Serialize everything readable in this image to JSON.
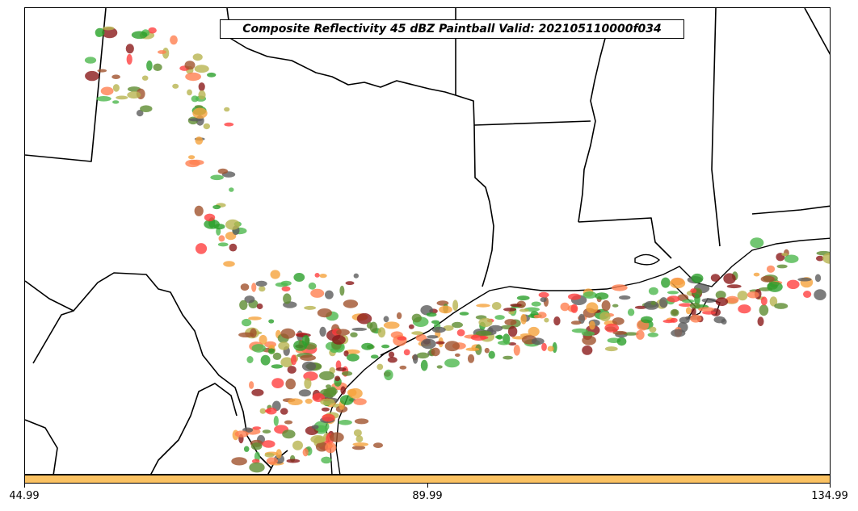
{
  "title": "Composite Reflectivity 45 dBZ Paintball Valid: 202105110000f034",
  "colorbar": {
    "ticks": [
      "44.99",
      "89.99",
      "134.99"
    ],
    "color": "#fbc262"
  },
  "member_colors": [
    "#4db84d",
    "#8b1a1a",
    "#ff4040",
    "#f5a33c",
    "#b8b450",
    "#5c5c5c",
    "#2ca02c",
    "#a0522d",
    "#ff7f50",
    "#5e8c31"
  ]
}
